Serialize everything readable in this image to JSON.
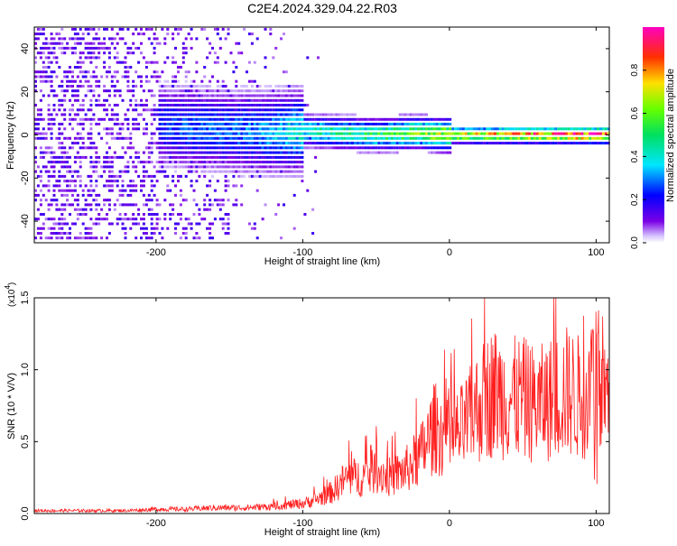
{
  "title": "C2E4.2024.329.04.22.R03",
  "chart_data": [
    {
      "type": "heatmap",
      "title": "",
      "xlabel": "Height of straight line (km)",
      "ylabel": "Frequency (Hz)",
      "xlim": [
        -283,
        109
      ],
      "ylim": [
        -50,
        50
      ],
      "xticks": [
        -200,
        -100,
        0,
        100
      ],
      "xtick_labels": [
        "-200",
        "-100",
        "0",
        "100"
      ],
      "yticks": [
        -40,
        -20,
        0,
        20,
        40
      ],
      "ytick_labels": [
        "-40",
        "-20",
        "0",
        "20",
        "40"
      ],
      "colorbar": {
        "label": "Normalized spectral amplitude",
        "range": [
          0,
          1
        ],
        "ticks": [
          0.0,
          0.2,
          0.4,
          0.6,
          0.8
        ],
        "tick_labels": [
          "0.0",
          "0.2",
          "0.4",
          "0.6",
          "0.8"
        ]
      },
      "ridge": {
        "description_x": [
          -200,
          -175,
          -150,
          -125,
          -100,
          -75,
          -50,
          -25,
          0,
          25,
          50,
          75,
          100,
          109
        ],
        "center_freq_hz": [
          5,
          3,
          2,
          1,
          2,
          1,
          0,
          1,
          0,
          0,
          0,
          0,
          0,
          0
        ],
        "peak_amplitude": [
          0.25,
          0.3,
          0.3,
          0.35,
          0.45,
          0.5,
          0.55,
          0.65,
          0.75,
          0.8,
          0.9,
          0.95,
          1.0,
          1.0
        ]
      }
    },
    {
      "type": "line",
      "title": "",
      "xlabel": "Height of straight line (km)",
      "ylabel": "SNR (10 * V/V)",
      "y_multiplier_label": "(x10",
      "y_multiplier_exp": "4",
      "y_multiplier_close": ")",
      "xlim": [
        -283,
        109
      ],
      "ylim": [
        0,
        1.5
      ],
      "xticks": [
        -200,
        -100,
        0,
        100
      ],
      "xtick_labels": [
        "-200",
        "-100",
        "0",
        "100"
      ],
      "yticks": [
        0.0,
        0.5,
        1.0,
        1.5
      ],
      "ytick_labels": [
        "0.0",
        "0.5",
        "1.0",
        "1.5"
      ],
      "color": "#ff2020",
      "series": [
        {
          "x": [
            -283,
            -250,
            -220,
            -200,
            -180,
            -160,
            -140,
            -120,
            -100,
            -90,
            -80,
            -70,
            -60,
            -50,
            -40,
            -30,
            -20,
            -10,
            0,
            10,
            20,
            30,
            40,
            50,
            60,
            70,
            80,
            90,
            95,
            100,
            105,
            109
          ],
          "y": [
            0.02,
            0.02,
            0.02,
            0.03,
            0.03,
            0.04,
            0.04,
            0.05,
            0.07,
            0.1,
            0.15,
            0.25,
            0.25,
            0.3,
            0.25,
            0.3,
            0.4,
            0.6,
            0.5,
            0.6,
            0.75,
            0.85,
            0.8,
            0.8,
            0.75,
            0.8,
            0.85,
            0.8,
            0.85,
            1.0,
            0.9,
            0.75
          ]
        }
      ]
    }
  ]
}
